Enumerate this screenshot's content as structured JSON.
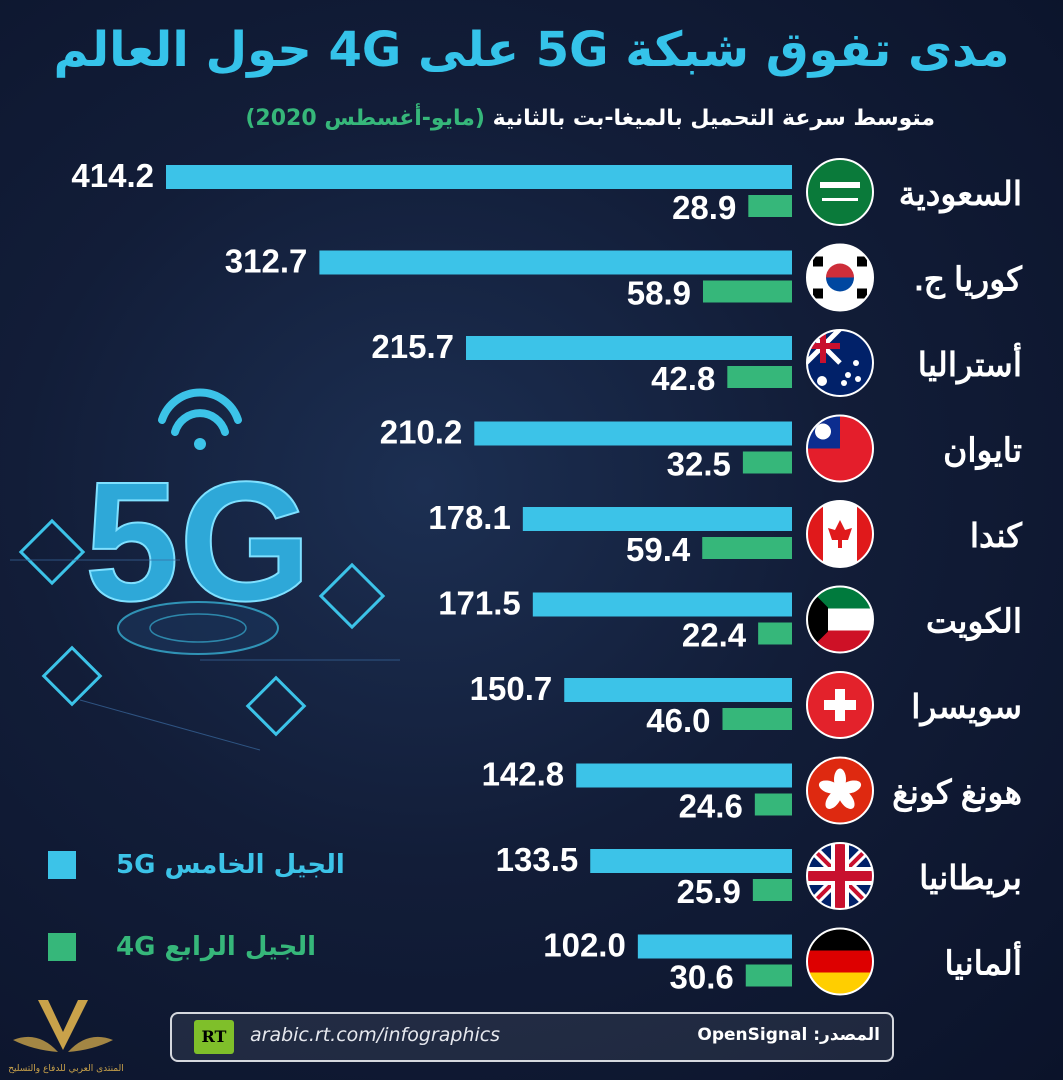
{
  "title": "مدى تفوق شبكة 5G على 4G حول العالم",
  "subtitle": {
    "text": "متوسط سرعة التحميل بالميغا-بت بالثانية",
    "period": "(مايو-أغسطس 2020)"
  },
  "legend": {
    "g5_label": "الجيل الخامس 5G",
    "g4_label": "الجيل الرابع 4G"
  },
  "footer": {
    "logo_text": "RT",
    "url": "arabic.rt.com/infographics",
    "source": "المصدر: OpenSignal"
  },
  "decor": {
    "big_label": "5G"
  },
  "watermark_text": "المنتدى العربي للدفاع والتسليح",
  "colors": {
    "g5": "#3cc3e8",
    "g4": "#36b77a",
    "title": "#35c3ea"
  },
  "chart_data": {
    "type": "bar",
    "orientation": "horizontal",
    "categories": [
      "السعودية",
      "كوريا ج.",
      "أستراليا",
      "تايوان",
      "كندا",
      "الكويت",
      "سويسرا",
      "هونغ كونغ",
      "بريطانيا",
      "ألمانيا"
    ],
    "series": [
      {
        "name": "الجيل الخامس 5G",
        "values": [
          414.2,
          312.7,
          215.7,
          210.2,
          178.1,
          171.5,
          150.7,
          142.8,
          133.5,
          102.0
        ]
      },
      {
        "name": "الجيل الرابع 4G",
        "values": [
          28.9,
          58.9,
          42.8,
          32.5,
          59.4,
          22.4,
          46.0,
          24.6,
          25.9,
          30.6
        ]
      }
    ],
    "value_labels": {
      "g5": [
        "414.2",
        "312.7",
        "215.7",
        "210.2",
        "178.1",
        "171.5",
        "150.7",
        "142.8",
        "133.5",
        "102.0"
      ],
      "g4": [
        "28.9",
        "58.9",
        "42.8",
        "32.5",
        "59.4",
        "22.4",
        "46.0",
        "24.6",
        "25.9",
        "30.6"
      ]
    },
    "flags": [
      "saudi-arabia-flag",
      "south-korea-flag",
      "australia-flag",
      "taiwan-flag",
      "canada-flag",
      "kuwait-flag",
      "switzerland-flag",
      "hong-kong-flag",
      "united-kingdom-flag",
      "germany-flag"
    ],
    "title": "مدى تفوق شبكة 5G على 4G حول العالم",
    "xlabel": "",
    "ylabel": "",
    "xlim": [
      0,
      414.2
    ],
    "grid": false
  }
}
